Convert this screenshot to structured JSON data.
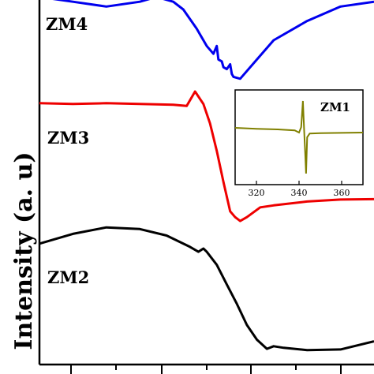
{
  "chart_data": {
    "type": "line",
    "title": "",
    "ylabel": "Intensity (a. u)",
    "xlabel": "",
    "x_ticks": [],
    "grid": false,
    "series": [
      {
        "name": "ZM4",
        "color": "#0000ee",
        "points": [
          [
            0,
            0.995
          ],
          [
            0.1,
            0.99
          ],
          [
            0.2,
            0.985
          ],
          [
            0.3,
            0.99
          ],
          [
            0.35,
            0.995
          ],
          [
            0.4,
            0.99
          ],
          [
            0.43,
            0.982
          ],
          [
            0.47,
            0.962
          ],
          [
            0.5,
            0.944
          ],
          [
            0.52,
            0.936
          ],
          [
            0.53,
            0.944
          ],
          [
            0.535,
            0.93
          ],
          [
            0.545,
            0.928
          ],
          [
            0.55,
            0.922
          ],
          [
            0.56,
            0.92
          ],
          [
            0.57,
            0.925
          ],
          [
            0.575,
            0.915
          ],
          [
            0.58,
            0.912
          ],
          [
            0.6,
            0.91
          ],
          [
            0.65,
            0.93
          ],
          [
            0.7,
            0.95
          ],
          [
            0.8,
            0.97
          ],
          [
            0.9,
            0.985
          ],
          [
            1,
            0.99
          ]
        ]
      },
      {
        "name": "ZM3",
        "color": "#ee0000",
        "points": [
          [
            0,
            0.722
          ],
          [
            0.1,
            0.72
          ],
          [
            0.2,
            0.722
          ],
          [
            0.3,
            0.72
          ],
          [
            0.4,
            0.718
          ],
          [
            0.44,
            0.715
          ],
          [
            0.465,
            0.752
          ],
          [
            0.49,
            0.72
          ],
          [
            0.51,
            0.67
          ],
          [
            0.53,
            0.6
          ],
          [
            0.55,
            0.52
          ],
          [
            0.57,
            0.445
          ],
          [
            0.585,
            0.43
          ],
          [
            0.6,
            0.42
          ],
          [
            0.62,
            0.43
          ],
          [
            0.66,
            0.455
          ],
          [
            0.7,
            0.46
          ],
          [
            0.8,
            0.47
          ],
          [
            0.9,
            0.475
          ],
          [
            1,
            0.476
          ]
        ]
      },
      {
        "name": "ZM2",
        "color": "#000000",
        "points": [
          [
            0,
            0.335
          ],
          [
            0.1,
            0.365
          ],
          [
            0.2,
            0.385
          ],
          [
            0.3,
            0.38
          ],
          [
            0.38,
            0.36
          ],
          [
            0.45,
            0.325
          ],
          [
            0.475,
            0.31
          ],
          [
            0.49,
            0.32
          ],
          [
            0.5,
            0.31
          ],
          [
            0.53,
            0.27
          ],
          [
            0.56,
            0.21
          ],
          [
            0.59,
            0.15
          ],
          [
            0.62,
            0.085
          ],
          [
            0.65,
            0.04
          ],
          [
            0.68,
            0.012
          ],
          [
            0.7,
            0.02
          ],
          [
            0.73,
            0.015
          ],
          [
            0.8,
            0.008
          ],
          [
            0.9,
            0.01
          ],
          [
            1,
            0.035
          ]
        ]
      }
    ],
    "inset": {
      "name": "ZM1",
      "color": "#808000",
      "x_ticks": [
        "320",
        "340",
        "360"
      ],
      "xlim": [
        310,
        370
      ],
      "ylim": [
        -1.5,
        1.5
      ],
      "points": [
        [
          310,
          0.3
        ],
        [
          320,
          0.27
        ],
        [
          330,
          0.25
        ],
        [
          338,
          0.22
        ],
        [
          340,
          0.15
        ],
        [
          341,
          0.32
        ],
        [
          341.8,
          1.15
        ],
        [
          342.4,
          0.2
        ],
        [
          342.9,
          -0.5
        ],
        [
          343.3,
          -1.15
        ],
        [
          343.8,
          0.0
        ],
        [
          345,
          0.12
        ],
        [
          350,
          0.13
        ],
        [
          360,
          0.14
        ],
        [
          370,
          0.15
        ]
      ]
    }
  }
}
